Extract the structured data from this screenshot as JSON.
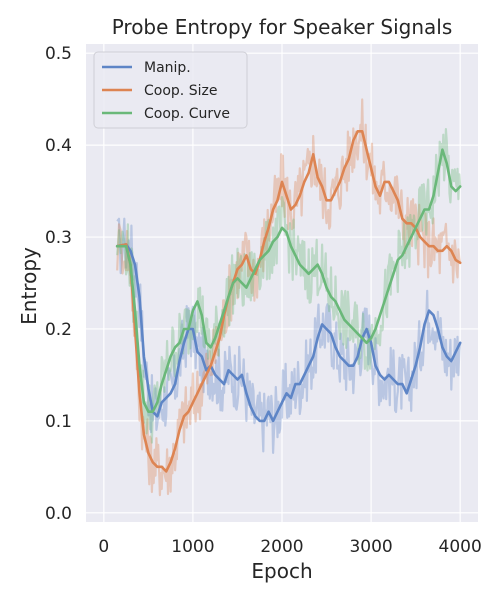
{
  "chart_data": {
    "type": "line",
    "title": "Probe Entropy for Speaker Signals",
    "xlabel": "Epoch",
    "ylabel": "Entropy",
    "xlim": [
      -200,
      4200
    ],
    "ylim": [
      -0.01,
      0.51
    ],
    "xticks": [
      0,
      1000,
      2000,
      3000,
      4000
    ],
    "yticks": [
      0.0,
      0.1,
      0.2,
      0.3,
      0.4,
      0.5
    ],
    "xtick_labels": [
      "0",
      "1000",
      "2000",
      "3000",
      "4000"
    ],
    "ytick_labels": [
      "0.0",
      "0.1",
      "0.2",
      "0.3",
      "0.4",
      "0.5"
    ],
    "grid": true,
    "legend_position": "top-left",
    "style": "seaborn darkgrid; smoothed lines drawn over faint raw-value lines",
    "series": [
      {
        "name": "Manip.",
        "color": "#5e85c6",
        "x": [
          150,
          250,
          300,
          350,
          400,
          450,
          500,
          550,
          600,
          650,
          700,
          750,
          800,
          850,
          900,
          950,
          1000,
          1050,
          1100,
          1150,
          1200,
          1250,
          1300,
          1350,
          1400,
          1450,
          1500,
          1550,
          1600,
          1650,
          1700,
          1750,
          1800,
          1850,
          1900,
          1950,
          2000,
          2050,
          2100,
          2150,
          2200,
          2250,
          2300,
          2350,
          2400,
          2450,
          2500,
          2550,
          2600,
          2650,
          2700,
          2750,
          2800,
          2850,
          2900,
          2950,
          3000,
          3050,
          3100,
          3150,
          3200,
          3250,
          3300,
          3350,
          3400,
          3450,
          3500,
          3550,
          3600,
          3650,
          3700,
          3750,
          3800,
          3850,
          3900,
          3950,
          4000
        ],
        "values": [
          0.29,
          0.292,
          0.285,
          0.27,
          0.235,
          0.17,
          0.135,
          0.11,
          0.105,
          0.12,
          0.125,
          0.13,
          0.14,
          0.165,
          0.185,
          0.2,
          0.2,
          0.175,
          0.17,
          0.155,
          0.16,
          0.15,
          0.145,
          0.14,
          0.155,
          0.15,
          0.145,
          0.15,
          0.13,
          0.115,
          0.105,
          0.1,
          0.1,
          0.11,
          0.1,
          0.11,
          0.12,
          0.13,
          0.125,
          0.14,
          0.14,
          0.15,
          0.16,
          0.17,
          0.19,
          0.205,
          0.2,
          0.195,
          0.18,
          0.17,
          0.165,
          0.16,
          0.16,
          0.17,
          0.19,
          0.2,
          0.185,
          0.16,
          0.15,
          0.145,
          0.15,
          0.145,
          0.14,
          0.14,
          0.13,
          0.145,
          0.16,
          0.18,
          0.205,
          0.22,
          0.215,
          0.2,
          0.18,
          0.17,
          0.165,
          0.175,
          0.185
        ]
      },
      {
        "name": "Coop. Size",
        "color": "#dd8452",
        "x": [
          150,
          250,
          300,
          350,
          400,
          450,
          500,
          550,
          600,
          650,
          700,
          750,
          800,
          850,
          900,
          950,
          1000,
          1050,
          1100,
          1150,
          1200,
          1250,
          1300,
          1350,
          1400,
          1450,
          1500,
          1550,
          1600,
          1650,
          1700,
          1750,
          1800,
          1850,
          1900,
          1950,
          2000,
          2050,
          2100,
          2150,
          2200,
          2250,
          2300,
          2350,
          2400,
          2450,
          2500,
          2550,
          2600,
          2650,
          2700,
          2750,
          2800,
          2850,
          2900,
          2950,
          3000,
          3050,
          3100,
          3150,
          3200,
          3250,
          3300,
          3350,
          3400,
          3450,
          3500,
          3550,
          3600,
          3650,
          3700,
          3750,
          3800,
          3850,
          3900,
          3950,
          4000
        ],
        "values": [
          0.29,
          0.292,
          0.27,
          0.2,
          0.13,
          0.085,
          0.065,
          0.055,
          0.05,
          0.05,
          0.045,
          0.055,
          0.07,
          0.09,
          0.105,
          0.11,
          0.12,
          0.13,
          0.14,
          0.15,
          0.16,
          0.175,
          0.19,
          0.215,
          0.235,
          0.25,
          0.265,
          0.27,
          0.28,
          0.265,
          0.26,
          0.275,
          0.295,
          0.31,
          0.33,
          0.34,
          0.36,
          0.345,
          0.33,
          0.335,
          0.345,
          0.36,
          0.37,
          0.39,
          0.365,
          0.355,
          0.34,
          0.34,
          0.35,
          0.36,
          0.375,
          0.385,
          0.405,
          0.415,
          0.415,
          0.395,
          0.375,
          0.355,
          0.345,
          0.36,
          0.36,
          0.35,
          0.34,
          0.32,
          0.315,
          0.315,
          0.31,
          0.3,
          0.295,
          0.29,
          0.29,
          0.285,
          0.285,
          0.29,
          0.285,
          0.275,
          0.272
        ]
      },
      {
        "name": "Coop. Curve",
        "color": "#6ab879",
        "x": [
          150,
          250,
          300,
          350,
          400,
          450,
          500,
          550,
          600,
          650,
          700,
          750,
          800,
          850,
          900,
          950,
          1000,
          1050,
          1100,
          1150,
          1200,
          1250,
          1300,
          1350,
          1400,
          1450,
          1500,
          1550,
          1600,
          1650,
          1700,
          1750,
          1800,
          1850,
          1900,
          1950,
          2000,
          2050,
          2100,
          2150,
          2200,
          2250,
          2300,
          2350,
          2400,
          2450,
          2500,
          2550,
          2600,
          2650,
          2700,
          2750,
          2800,
          2850,
          2900,
          2950,
          3000,
          3050,
          3100,
          3150,
          3200,
          3250,
          3300,
          3350,
          3400,
          3450,
          3500,
          3550,
          3600,
          3650,
          3700,
          3750,
          3800,
          3850,
          3900,
          3950,
          4000
        ],
        "values": [
          0.29,
          0.29,
          0.27,
          0.22,
          0.16,
          0.12,
          0.11,
          0.11,
          0.12,
          0.14,
          0.155,
          0.17,
          0.18,
          0.185,
          0.2,
          0.2,
          0.22,
          0.23,
          0.215,
          0.185,
          0.18,
          0.19,
          0.205,
          0.22,
          0.235,
          0.25,
          0.255,
          0.25,
          0.245,
          0.255,
          0.265,
          0.275,
          0.28,
          0.285,
          0.295,
          0.3,
          0.31,
          0.305,
          0.29,
          0.28,
          0.27,
          0.265,
          0.26,
          0.265,
          0.27,
          0.26,
          0.245,
          0.235,
          0.23,
          0.22,
          0.21,
          0.205,
          0.2,
          0.195,
          0.19,
          0.185,
          0.19,
          0.2,
          0.215,
          0.23,
          0.245,
          0.26,
          0.275,
          0.28,
          0.29,
          0.3,
          0.31,
          0.32,
          0.33,
          0.33,
          0.345,
          0.37,
          0.395,
          0.38,
          0.355,
          0.35,
          0.355
        ]
      }
    ]
  }
}
